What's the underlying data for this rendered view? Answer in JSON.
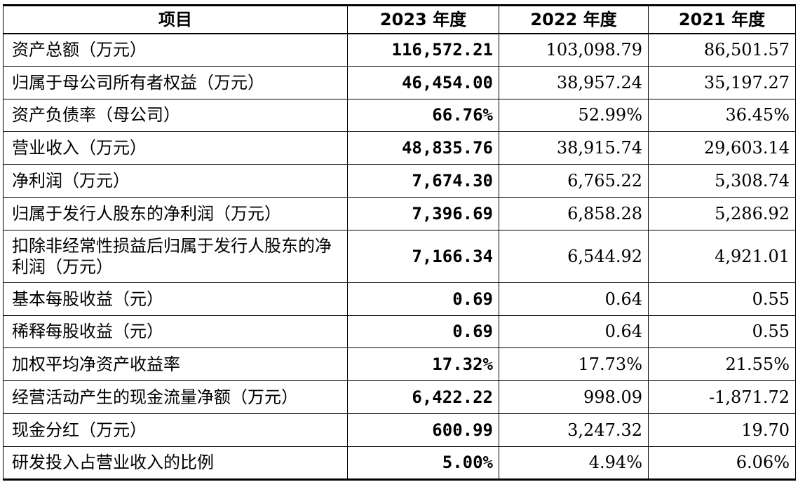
{
  "headers": [
    "项目",
    "2023 年度",
    "2022 年度",
    "2021 年度"
  ],
  "rows": [
    {
      "item": "资产总额（万元）",
      "y2023": "116,572.21",
      "y2022": "103,098.79",
      "y2021": "86,501.57"
    },
    {
      "item": "归属于母公司所有者权益（万元）",
      "y2023": "46,454.00",
      "y2022": "38,957.24",
      "y2021": "35,197.27"
    },
    {
      "item": "资产负债率（母公司）",
      "y2023": "66.76%",
      "y2022": "52.99%",
      "y2021": "36.45%"
    },
    {
      "item": "营业收入（万元）",
      "y2023": "48,835.76",
      "y2022": "38,915.74",
      "y2021": "29,603.14"
    },
    {
      "item": "净利润（万元）",
      "y2023": "7,674.30",
      "y2022": "6,765.22",
      "y2021": "5,308.74"
    },
    {
      "item": "归属于发行人股东的净利润（万元）",
      "y2023": "7,396.69",
      "y2022": "6,858.28",
      "y2021": "5,286.92"
    },
    {
      "item": "扣除非经常性损益后归属于发行人股东的净利润（万元）",
      "y2023": "7,166.34",
      "y2022": "6,544.92",
      "y2021": "4,921.01"
    },
    {
      "item": "基本每股收益（元）",
      "y2023": "0.69",
      "y2022": "0.64",
      "y2021": "0.55"
    },
    {
      "item": "稀释每股收益（元）",
      "y2023": "0.69",
      "y2022": "0.64",
      "y2021": "0.55"
    },
    {
      "item": "加权平均净资产收益率",
      "y2023": "17.32%",
      "y2022": "17.73%",
      "y2021": "21.55%"
    },
    {
      "item": "经营活动产生的现金流量净额（万元）",
      "y2023": "6,422.22",
      "y2022": "998.09",
      "y2021": "-1,871.72"
    },
    {
      "item": "现金分红（万元）",
      "y2023": "600.99",
      "y2022": "3,247.32",
      "y2021": "19.70"
    },
    {
      "item": "研发投入占营业收入的比例",
      "y2023": "5.00%",
      "y2022": "4.94%",
      "y2021": "6.06%"
    }
  ]
}
